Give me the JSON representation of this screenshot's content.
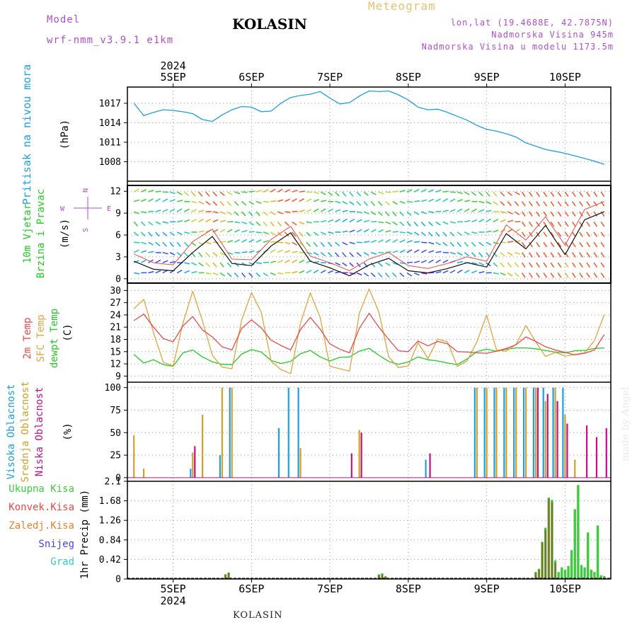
{
  "header": {
    "model_label": "Model",
    "model_name": "wrf-nmm_v3.9.1 e1km",
    "title": "KOLASIN",
    "meteogram_label": "Meteogram",
    "coords": "lon,lat (19.4688E, 42.7875N)",
    "altitude": "Nadmorska Visina 945m",
    "model_altitude": "Nadmorska Visina u modelu 1173.5m"
  },
  "footer": {
    "station": "KOLASIN",
    "credit": "made by Angel"
  },
  "axis": {
    "top_year": "2024",
    "bottom_year": "2024",
    "days": [
      "5SEP",
      "6SEP",
      "7SEP",
      "8SEP",
      "9SEP",
      "10SEP"
    ]
  },
  "colors": {
    "pressure": "#1ea0e0",
    "temp2m": "#e84c4c",
    "sfc_temp": "#e0a440",
    "dewpt": "#22cc22",
    "high_cloud": "#1ea0e0",
    "mid_cloud": "#d4a020",
    "low_cloud": "#c0108a",
    "total_precip": "#3ecc3e",
    "conv_precip": "#ee4444",
    "frozen_precip": "#f08030",
    "snow": "#4444ee",
    "hail": "#33cccc",
    "wind_label": "#22cc22",
    "wind_dir": "#b04fd0"
  },
  "chart_data": [
    {
      "type": "line",
      "panel": "pressure",
      "ylabel": "Pritisak na nivou mora",
      "unit": "(hPa)",
      "yticks": [
        1008,
        1011,
        1014,
        1017
      ],
      "ylim": [
        1005,
        1019.5
      ],
      "x": [
        0,
        3,
        6,
        9,
        12,
        15,
        18,
        21,
        24,
        27,
        30,
        33,
        36,
        39,
        42,
        45,
        48,
        51,
        54,
        57,
        60,
        63,
        66,
        69,
        72,
        75,
        78,
        81,
        84,
        87,
        90,
        93,
        96,
        99,
        102,
        105,
        108,
        111,
        114,
        117,
        120,
        123,
        126,
        129,
        132,
        135,
        138,
        141,
        144
      ],
      "series": [
        {
          "name": "Pritisak",
          "values": [
            1017.0,
            1015.1,
            1015.6,
            1016.0,
            1015.9,
            1015.7,
            1015.4,
            1014.5,
            1014.2,
            1015.2,
            1016.0,
            1016.5,
            1016.4,
            1015.7,
            1015.8,
            1017.0,
            1017.9,
            1018.2,
            1018.4,
            1018.8,
            1017.8,
            1016.9,
            1017.1,
            1018.1,
            1018.9,
            1018.8,
            1018.9,
            1018.3,
            1017.5,
            1016.4,
            1016.0,
            1016.1,
            1015.6,
            1015.0,
            1014.4,
            1013.6,
            1013.0,
            1012.7,
            1012.3,
            1011.8,
            1010.9,
            1010.4,
            1009.9,
            1009.6,
            1009.3,
            1008.9,
            1008.5,
            1008.1,
            1007.6
          ]
        }
      ]
    },
    {
      "type": "line",
      "panel": "wind",
      "ylabel": "10m Vjetar Brzina i Pravac",
      "unit": "(m/s)",
      "compass": [
        "N",
        "E",
        "S",
        "W"
      ],
      "yticks": [
        0,
        3,
        6,
        9,
        12
      ],
      "ylim": [
        -0.6,
        12.8
      ],
      "x": [
        0,
        6,
        12,
        18,
        24,
        30,
        36,
        42,
        48,
        54,
        60,
        66,
        72,
        78,
        84,
        90,
        96,
        102,
        108,
        114,
        120,
        126,
        132,
        138,
        144
      ],
      "series": [
        {
          "name": "Brzina",
          "values": [
            2.4,
            1.3,
            1.1,
            3.6,
            5.8,
            2.1,
            1.8,
            4.5,
            6.3,
            2.4,
            1.5,
            0.4,
            1.9,
            2.8,
            1.1,
            0.8,
            1.4,
            2.2,
            1.6,
            6.2,
            4.1,
            7.3,
            3.3,
            8.1,
            9.2
          ]
        },
        {
          "name": "Udari",
          "values": [
            3.4,
            2.2,
            1.9,
            5.1,
            6.8,
            2.7,
            2.6,
            5.4,
            7.2,
            3.1,
            2.2,
            1.1,
            2.7,
            3.6,
            1.8,
            1.4,
            2.1,
            3.0,
            2.4,
            7.4,
            5.3,
            8.5,
            4.6,
            9.5,
            10.6
          ]
        }
      ]
    },
    {
      "type": "line",
      "panel": "temperature",
      "labels": [
        "2m Temp",
        "SFC Temp",
        "dewpt Temp"
      ],
      "unit": "(C)",
      "yticks": [
        9,
        12,
        15,
        18,
        21,
        24,
        27,
        30
      ],
      "ylim": [
        7.5,
        31.8
      ],
      "x": [
        0,
        3,
        6,
        9,
        12,
        15,
        18,
        21,
        24,
        27,
        30,
        33,
        36,
        39,
        42,
        45,
        48,
        51,
        54,
        57,
        60,
        63,
        66,
        69,
        72,
        75,
        78,
        81,
        84,
        87,
        90,
        93,
        96,
        99,
        102,
        105,
        108,
        111,
        114,
        117,
        120,
        123,
        126,
        129,
        132,
        135,
        138,
        141,
        144
      ],
      "series": [
        {
          "name": "2m Temp",
          "values": [
            22.6,
            24.2,
            21.0,
            18.2,
            17.4,
            21.3,
            23.6,
            20.3,
            18.6,
            16.2,
            15.4,
            20.7,
            22.8,
            20.8,
            17.8,
            16.5,
            15.4,
            20.4,
            23.4,
            20.5,
            16.9,
            15.6,
            14.7,
            20.7,
            24.4,
            21.0,
            18.0,
            15.2,
            15.0,
            17.6,
            16.4,
            17.5,
            16.9,
            15.0,
            14.9,
            14.7,
            14.6,
            15.1,
            15.8,
            16.7,
            18.6,
            17.5,
            16.2,
            15.4,
            14.8,
            14.2,
            14.6,
            15.4,
            19.2
          ]
        },
        {
          "name": "SFC Temp",
          "values": [
            25.5,
            27.8,
            19.6,
            12.4,
            11.5,
            22.0,
            29.8,
            22.5,
            14.1,
            11.2,
            10.8,
            22.8,
            29.5,
            24.6,
            12.6,
            10.6,
            9.6,
            22.0,
            29.4,
            23.4,
            11.4,
            10.8,
            10.2,
            24.4,
            30.4,
            24.7,
            13.7,
            11.1,
            11.5,
            17.2,
            13.3,
            18.1,
            17.4,
            11.4,
            12.7,
            17.4,
            24.0,
            15.4,
            15.1,
            16.8,
            21.4,
            17.4,
            13.8,
            14.8,
            13.9,
            14.3,
            14.7,
            17.7,
            24.1
          ]
        },
        {
          "name": "dewpt Temp",
          "values": [
            14.3,
            12.2,
            13.0,
            11.8,
            11.4,
            14.7,
            15.4,
            13.7,
            12.5,
            11.9,
            11.8,
            14.4,
            15.5,
            14.9,
            12.8,
            12.1,
            12.6,
            14.5,
            15.3,
            13.7,
            12.7,
            13.6,
            13.7,
            15.1,
            15.8,
            14.1,
            12.6,
            11.9,
            12.5,
            13.7,
            13.0,
            12.7,
            12.2,
            11.8,
            13.2,
            15.0,
            15.6,
            15.1,
            15.6,
            15.9,
            15.9,
            15.7,
            15.3,
            14.9,
            14.7,
            15.2,
            15.3,
            15.8,
            15.9
          ]
        }
      ]
    },
    {
      "type": "bar",
      "panel": "cloud",
      "labels": [
        "Visoka Oblacnost",
        "Srednja Oblacnost",
        "Niska Oblacnost"
      ],
      "unit": "(%)",
      "yticks": [
        0,
        25,
        50,
        75,
        100
      ],
      "ylim": [
        -4,
        106
      ],
      "x": [
        0,
        3,
        6,
        9,
        12,
        15,
        18,
        21,
        24,
        27,
        30,
        33,
        36,
        39,
        42,
        45,
        48,
        51,
        54,
        57,
        60,
        63,
        66,
        69,
        72,
        75,
        78,
        81,
        84,
        87,
        90,
        93,
        96,
        99,
        102,
        105,
        108,
        111,
        114,
        117,
        120,
        123,
        126,
        129,
        132,
        135,
        138,
        141,
        144
      ],
      "series": [
        {
          "name": "Visoka Oblacnost",
          "values": [
            0,
            0,
            0,
            0,
            0,
            0,
            10,
            0,
            0,
            25,
            100,
            0,
            0,
            0,
            0,
            55,
            100,
            100,
            0,
            0,
            0,
            0,
            0,
            0,
            0,
            0,
            0,
            0,
            0,
            0,
            20,
            0,
            0,
            0,
            0,
            100,
            100,
            100,
            100,
            100,
            100,
            100,
            100,
            100,
            100,
            0,
            0,
            0,
            0
          ]
        },
        {
          "name": "Srednja Oblacnost",
          "values": [
            47,
            10,
            0,
            0,
            0,
            0,
            28,
            70,
            0,
            100,
            100,
            0,
            0,
            0,
            0,
            0,
            0,
            33,
            0,
            0,
            0,
            0,
            0,
            53,
            0,
            0,
            0,
            0,
            0,
            0,
            0,
            0,
            0,
            0,
            0,
            100,
            100,
            100,
            100,
            100,
            100,
            100,
            85,
            100,
            70,
            20,
            0,
            0,
            0
          ]
        },
        {
          "name": "Niska Oblacnost",
          "values": [
            0,
            0,
            0,
            0,
            0,
            0,
            35,
            0,
            0,
            0,
            0,
            0,
            0,
            0,
            0,
            0,
            0,
            0,
            0,
            0,
            0,
            0,
            27,
            50,
            0,
            0,
            0,
            0,
            0,
            0,
            27,
            0,
            0,
            0,
            0,
            0,
            0,
            0,
            0,
            0,
            0,
            100,
            93,
            85,
            60,
            0,
            58,
            45,
            55
          ]
        }
      ]
    },
    {
      "type": "bar",
      "panel": "precipitation",
      "labels": [
        "Ukupna Kisa",
        "Konvek.Kisa",
        "Zaledj.Kisa",
        "Snijeg",
        "Grad"
      ],
      "ylabel": "1hr Precip",
      "unit": "(mm)",
      "yticks": [
        0,
        0.42,
        0.84,
        1.26,
        1.68,
        2.1
      ],
      "ylim": [
        0,
        2.1
      ],
      "x": [
        28,
        29,
        75,
        76,
        77,
        123,
        124,
        125,
        126,
        127,
        128,
        129,
        130,
        131,
        132,
        133,
        134,
        135,
        136,
        137,
        138,
        139,
        140,
        141,
        142,
        143,
        144
      ],
      "series": [
        {
          "name": "Ukupna Kisa",
          "values": [
            0.1,
            0.14,
            0.1,
            0.12,
            0.06,
            0.15,
            0.22,
            0.8,
            1.1,
            1.75,
            1.7,
            0.4,
            0.15,
            0.25,
            0.2,
            0.28,
            0.62,
            1.5,
            2.02,
            0.3,
            0.25,
            1.0,
            0.2,
            0.15,
            1.15,
            0.08,
            0.06
          ]
        },
        {
          "name": "Konvek.Kisa",
          "values": [
            0.1,
            0.13,
            0.08,
            0.1,
            0.05,
            0.13,
            0.2,
            0.78,
            1.05,
            1.72,
            1.65,
            0.35,
            0,
            0,
            0,
            0,
            0,
            0,
            0,
            0,
            0,
            0,
            0,
            0,
            0,
            0,
            0
          ]
        }
      ]
    }
  ]
}
